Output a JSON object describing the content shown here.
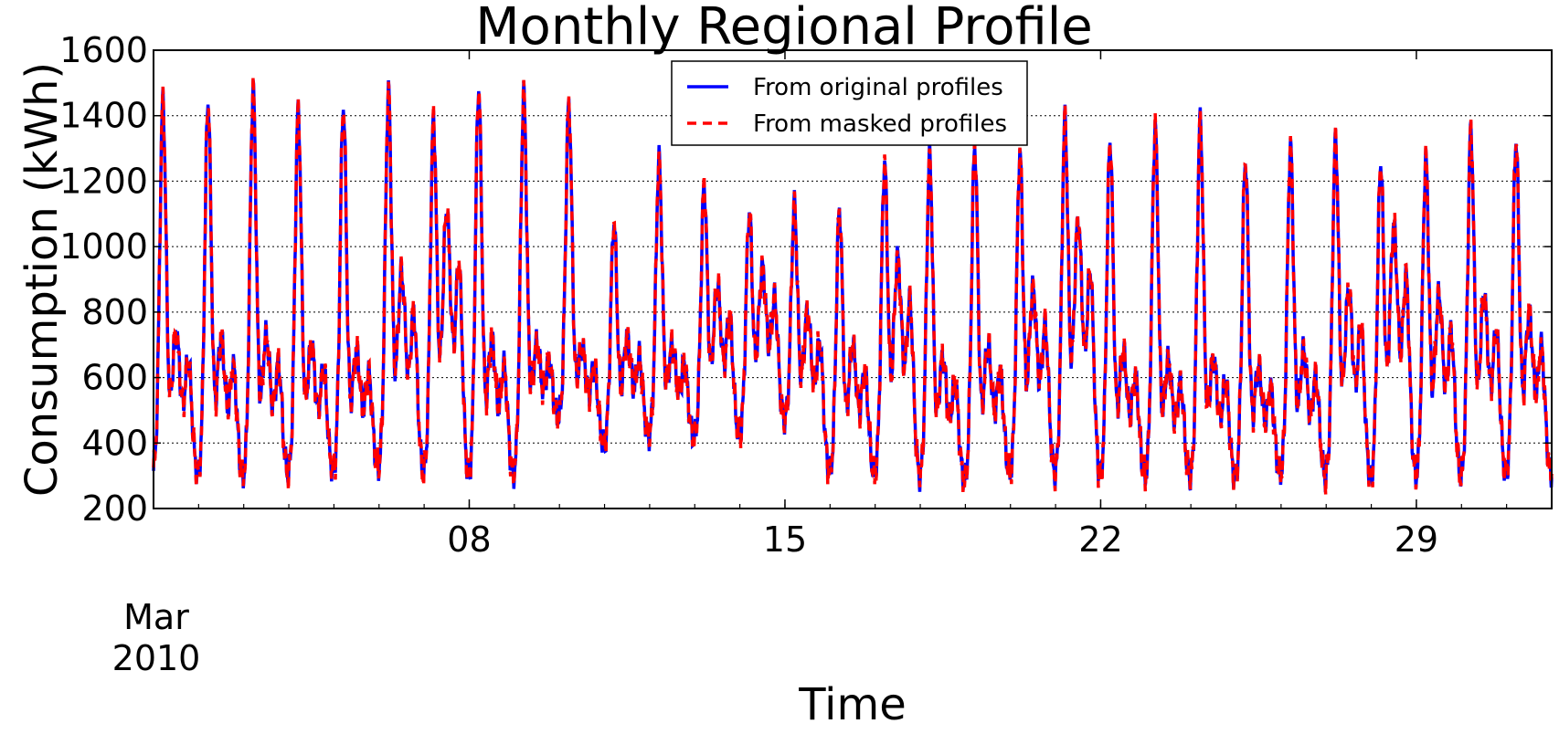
{
  "chart_data": {
    "type": "line",
    "title": "Monthly Regional Profile",
    "xlabel": "Time",
    "ylabel": "Consumption (kWh)",
    "x_tick_labels": [
      "08",
      "15",
      "22",
      "29"
    ],
    "x_tick_dates": [
      "2010-03-08",
      "2010-03-15",
      "2010-03-22",
      "2010-03-29"
    ],
    "x_sublabel": [
      "Mar",
      "2010"
    ],
    "x_range": [
      "2010-03-01",
      "2010-04-01"
    ],
    "ylim": [
      200,
      1600
    ],
    "yticks": [
      200,
      400,
      600,
      800,
      1000,
      1200,
      1400,
      1600
    ],
    "grid": "horizontal dotted",
    "legend_position": "top-center",
    "legend": [
      {
        "label": "From original profiles",
        "style": "solid",
        "color": "#0000ff"
      },
      {
        "label": "From masked profiles",
        "style": "dashed",
        "color": "#ff0000"
      }
    ],
    "daily_peaks_kwh": [
      1440,
      1440,
      1475,
      1410,
      1425,
      1465,
      1380,
      1480,
      1460,
      1430,
      1070,
      1260,
      1180,
      1100,
      1120,
      1110,
      1250,
      1270,
      1300,
      1280,
      1380,
      1320,
      1360,
      1380,
      1260,
      1300,
      1320,
      1250,
      1260,
      1350,
      1320
    ],
    "daily_evening_kwh": [
      760,
      740,
      750,
      720,
      700,
      950,
      1150,
      740,
      720,
      700,
      740,
      710,
      900,
      960,
      820,
      720,
      1000,
      680,
      720,
      900,
      1120,
      700,
      670,
      680,
      650,
      700,
      900,
      1100,
      880,
      880,
      820
    ],
    "daily_min_kwh": [
      300,
      300,
      290,
      300,
      310,
      320,
      300,
      290,
      300,
      480,
      390,
      420,
      410,
      420,
      470,
      300,
      300,
      290,
      280,
      300,
      300,
      290,
      290,
      290,
      290,
      300,
      290,
      290,
      290,
      290,
      300
    ],
    "series": [
      {
        "name": "From original profiles",
        "color": "#0000ff",
        "style": "solid"
      },
      {
        "name": "From masked profiles",
        "color": "#ff0000",
        "style": "dashed"
      }
    ]
  }
}
